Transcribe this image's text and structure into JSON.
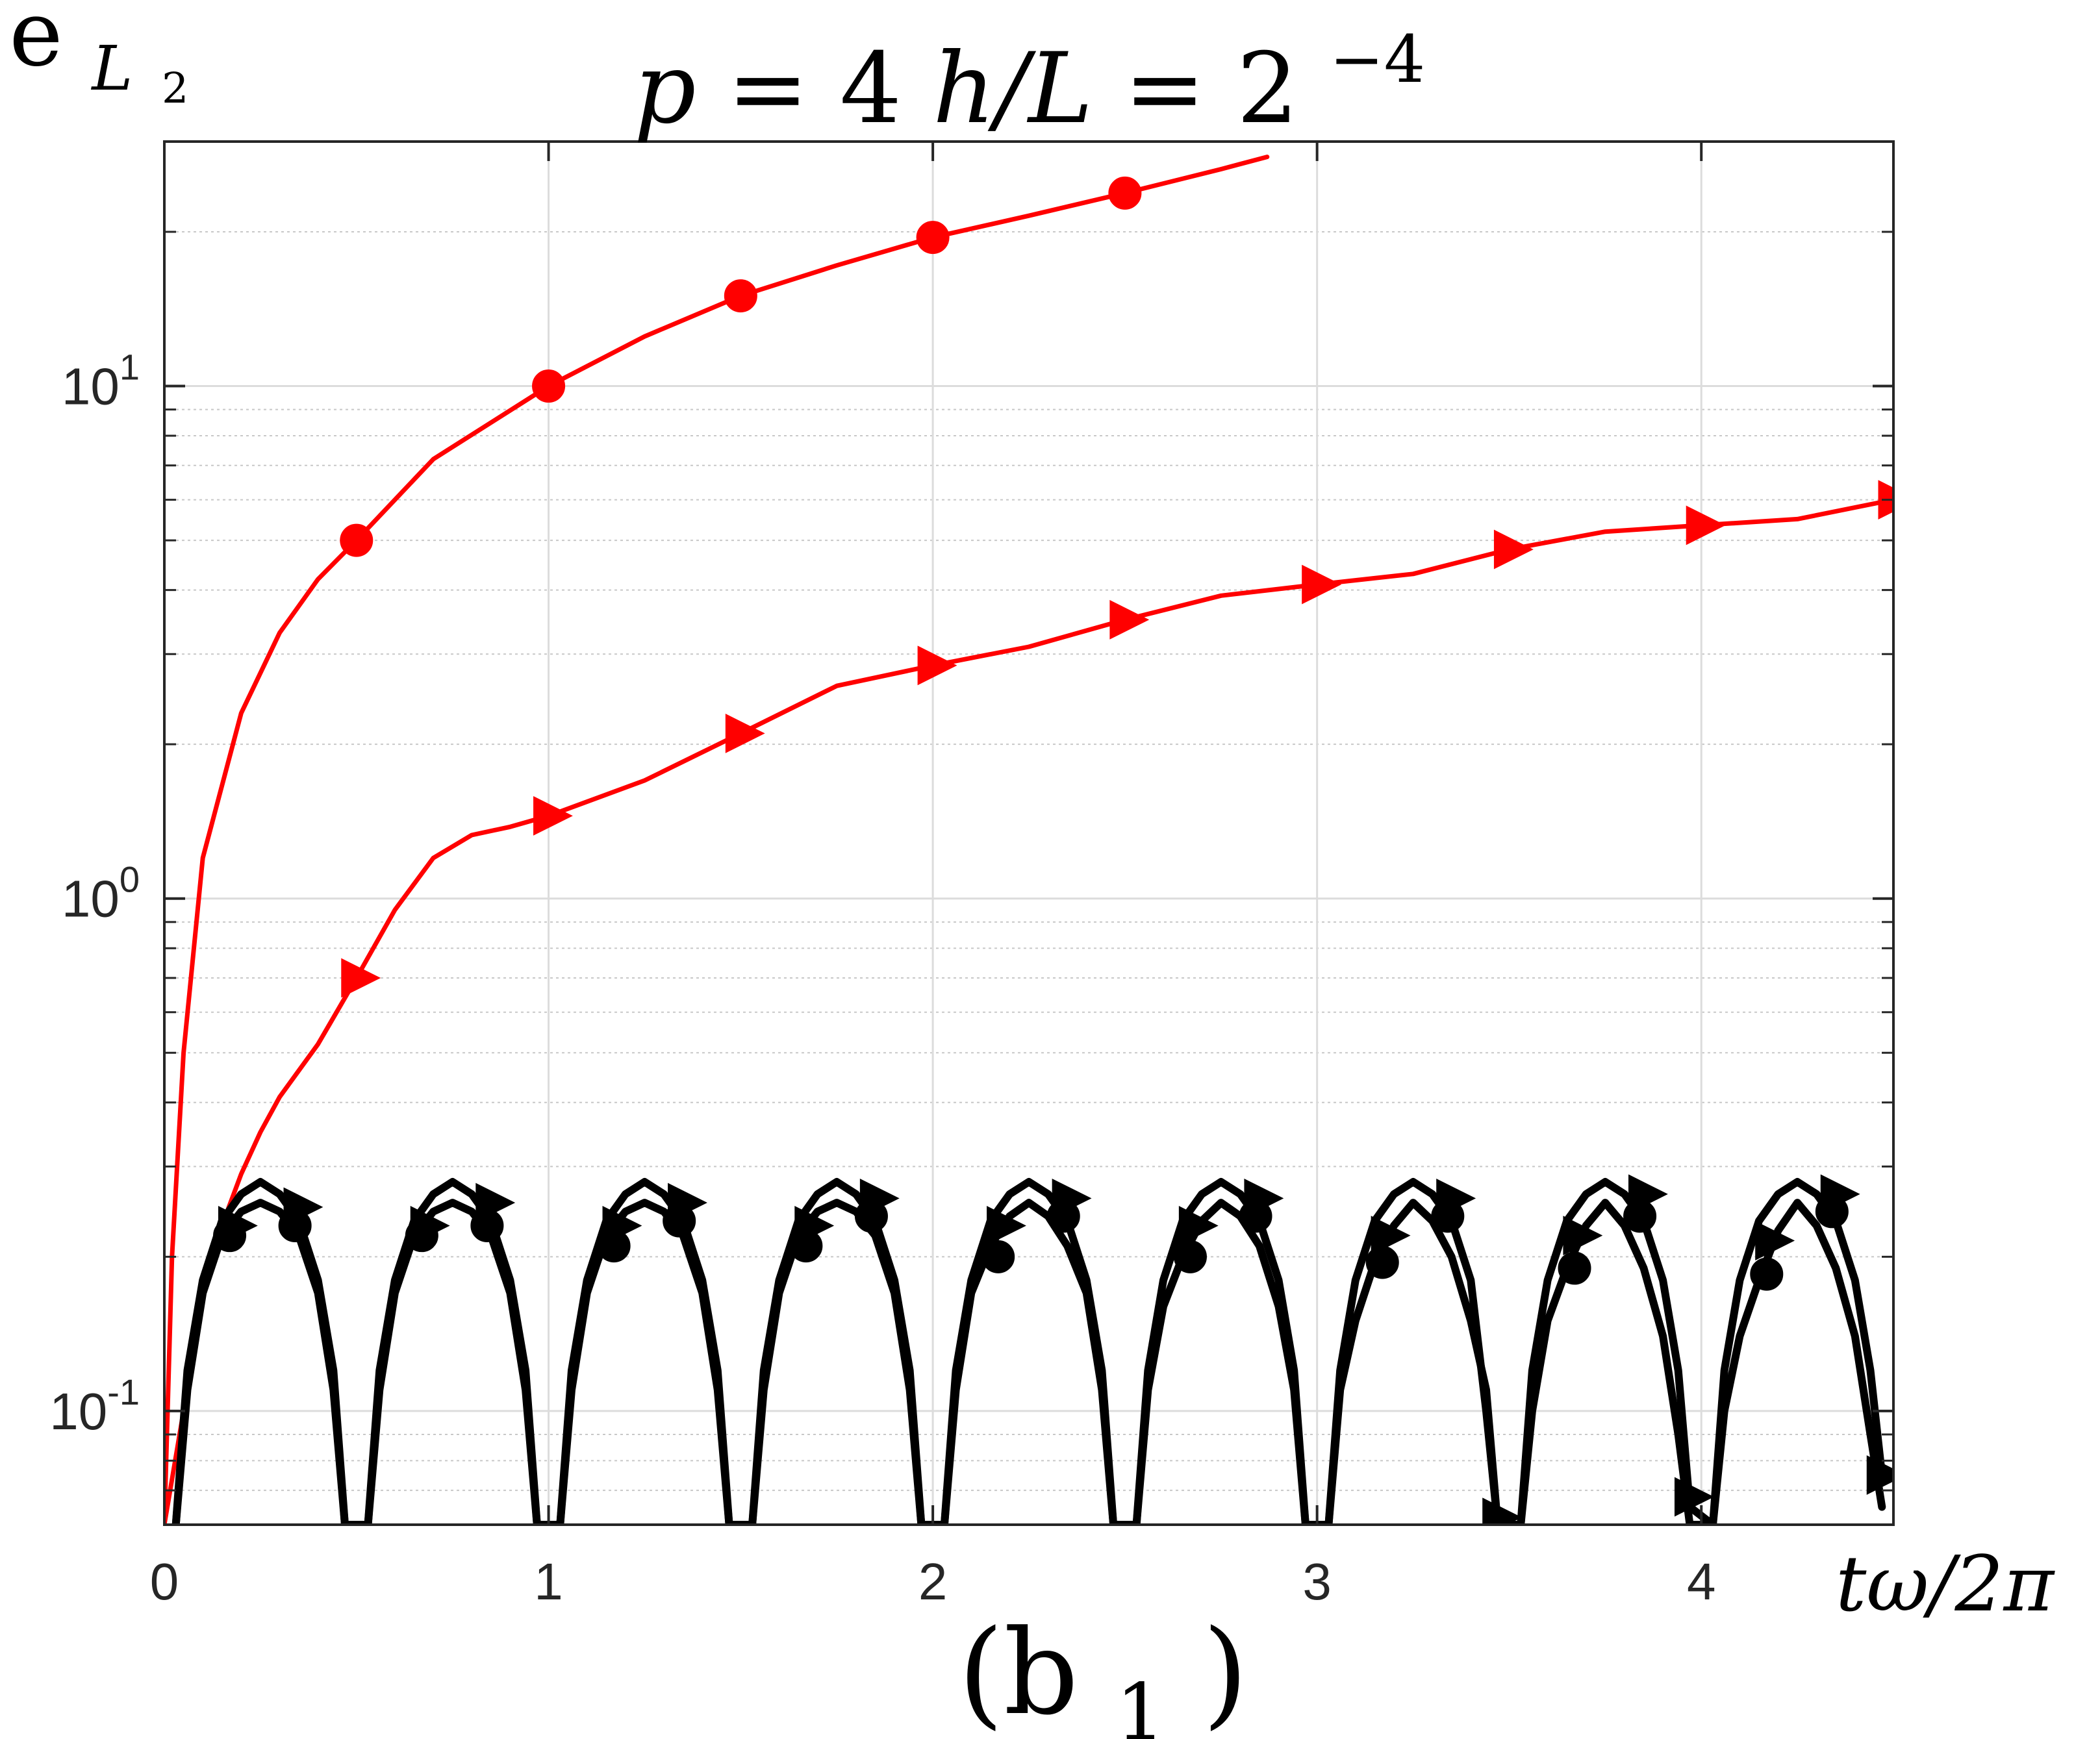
{
  "chart_data": {
    "type": "line",
    "title": {
      "p_label": "p",
      "p_value": "4",
      "h_label": "h/L",
      "base": "2",
      "exponent": "−4"
    },
    "ylabel": {
      "main": "e",
      "sub_main": "L",
      "sub_sub": "2"
    },
    "xlabel": "tω/2π",
    "panel_label": {
      "main": "(b",
      "sub": "1",
      "close": ")"
    },
    "x_scale": "linear",
    "y_scale": "log",
    "xlim": [
      0,
      4.5
    ],
    "ylim": [
      0.06,
      30
    ],
    "x_ticks": [
      0,
      1,
      2,
      3,
      4
    ],
    "x_tick_labels": [
      "0",
      "1",
      "2",
      "3",
      "4"
    ],
    "y_ticks": [
      {
        "base": "10",
        "exp": "-1",
        "value": 0.1
      },
      {
        "base": "10",
        "exp": "0",
        "value": 1
      },
      {
        "base": "10",
        "exp": "1",
        "value": 10
      }
    ],
    "grid": true,
    "legend": "none",
    "colors": {
      "red": "#ff0000",
      "black": "#000000",
      "grid": "#dcdcdc",
      "axis": "#262626"
    },
    "series": [
      {
        "color": "#ff0000",
        "marker": "circle",
        "x": [
          0.0,
          0.02,
          0.05,
          0.1,
          0.2,
          0.3,
          0.4,
          0.5,
          0.7,
          1.0,
          1.25,
          1.5,
          1.75,
          2.0,
          2.25,
          2.5,
          2.75,
          2.87
        ],
        "y": [
          0.06,
          0.2,
          0.5,
          1.2,
          2.3,
          3.3,
          4.2,
          5.0,
          7.2,
          10.0,
          12.5,
          15.0,
          17.2,
          19.5,
          21.5,
          23.8,
          26.5,
          28.0
        ],
        "marker_x": [
          0.5,
          1.0,
          1.5,
          2.0,
          2.5
        ],
        "marker_y": [
          5.0,
          10.0,
          15.0,
          19.5,
          23.8
        ]
      },
      {
        "color": "#ff0000",
        "marker": "triangle-right",
        "x": [
          0.0,
          0.05,
          0.1,
          0.15,
          0.2,
          0.25,
          0.3,
          0.4,
          0.5,
          0.6,
          0.7,
          0.8,
          0.9,
          1.0,
          1.25,
          1.5,
          1.75,
          2.0,
          2.25,
          2.5,
          2.75,
          3.0,
          3.25,
          3.5,
          3.75,
          4.0,
          4.25,
          4.5
        ],
        "y": [
          0.06,
          0.1,
          0.17,
          0.23,
          0.29,
          0.35,
          0.41,
          0.52,
          0.7,
          0.95,
          1.2,
          1.33,
          1.38,
          1.45,
          1.7,
          2.1,
          2.6,
          2.85,
          3.1,
          3.5,
          3.9,
          4.1,
          4.3,
          4.8,
          5.2,
          5.35,
          5.5,
          6.0
        ],
        "marker_x": [
          0.5,
          1.0,
          1.5,
          2.0,
          2.5,
          3.0,
          3.5,
          4.0,
          4.5
        ],
        "marker_y": [
          0.7,
          1.45,
          2.1,
          2.85,
          3.5,
          4.1,
          4.8,
          5.35,
          6.0
        ]
      },
      {
        "color": "#000000",
        "marker": "circle",
        "x": [
          0.03,
          0.06,
          0.1,
          0.15,
          0.2,
          0.25,
          0.3,
          0.35,
          0.4,
          0.44,
          0.47,
          0.53,
          0.56,
          0.6,
          0.65,
          0.7,
          0.75,
          0.8,
          0.85,
          0.9,
          0.94,
          0.97,
          1.03,
          1.06,
          1.1,
          1.15,
          1.2,
          1.25,
          1.3,
          1.35,
          1.4,
          1.44,
          1.47,
          1.53,
          1.56,
          1.6,
          1.65,
          1.7,
          1.75,
          1.8,
          1.85,
          1.9,
          1.94,
          1.97,
          2.03,
          2.06,
          2.1,
          2.15,
          2.2,
          2.25,
          2.3,
          2.35,
          2.4,
          2.44,
          2.47,
          2.53,
          2.56,
          2.6,
          2.65,
          2.7,
          2.75,
          2.8,
          2.85,
          2.9,
          2.94,
          2.97,
          3.03,
          3.06,
          3.1,
          3.15,
          3.2,
          3.25,
          3.3,
          3.35,
          3.4,
          3.44,
          3.47,
          3.53,
          3.56,
          3.6,
          3.65,
          3.7,
          3.75,
          3.8,
          3.85,
          3.9,
          3.94,
          3.97,
          4.03,
          4.06,
          4.1,
          4.15,
          4.2,
          4.25,
          4.3,
          4.35,
          4.4,
          4.44,
          4.47
        ],
        "y": [
          0.06,
          0.11,
          0.17,
          0.22,
          0.245,
          0.255,
          0.245,
          0.22,
          0.17,
          0.11,
          0.06,
          0.06,
          0.11,
          0.17,
          0.22,
          0.245,
          0.255,
          0.245,
          0.22,
          0.17,
          0.11,
          0.06,
          0.06,
          0.11,
          0.17,
          0.22,
          0.245,
          0.255,
          0.245,
          0.22,
          0.17,
          0.11,
          0.06,
          0.06,
          0.11,
          0.17,
          0.22,
          0.245,
          0.255,
          0.245,
          0.22,
          0.17,
          0.11,
          0.06,
          0.06,
          0.11,
          0.17,
          0.21,
          0.24,
          0.255,
          0.24,
          0.21,
          0.17,
          0.11,
          0.06,
          0.06,
          0.11,
          0.16,
          0.2,
          0.235,
          0.255,
          0.24,
          0.21,
          0.16,
          0.11,
          0.06,
          0.06,
          0.11,
          0.15,
          0.195,
          0.23,
          0.255,
          0.235,
          0.2,
          0.15,
          0.11,
          0.06,
          0.06,
          0.1,
          0.15,
          0.19,
          0.23,
          0.255,
          0.23,
          0.19,
          0.14,
          0.09,
          0.06,
          0.06,
          0.1,
          0.14,
          0.18,
          0.225,
          0.255,
          0.23,
          0.19,
          0.14,
          0.09,
          0.065
        ],
        "marker_x": [
          0.17,
          0.34,
          0.67,
          0.84,
          1.17,
          1.34,
          1.67,
          1.84,
          2.17,
          2.34,
          2.67,
          2.84,
          3.17,
          3.34,
          3.67,
          3.84,
          4.17,
          4.34
        ],
        "marker_y": [
          0.22,
          0.23,
          0.22,
          0.23,
          0.21,
          0.235,
          0.21,
          0.24,
          0.2,
          0.24,
          0.2,
          0.24,
          0.195,
          0.24,
          0.19,
          0.24,
          0.185,
          0.245
        ]
      },
      {
        "color": "#000000",
        "marker": "triangle-right",
        "x": [
          0.03,
          0.06,
          0.1,
          0.15,
          0.2,
          0.25,
          0.3,
          0.35,
          0.4,
          0.44,
          0.47,
          0.53,
          0.56,
          0.6,
          0.65,
          0.7,
          0.75,
          0.8,
          0.85,
          0.9,
          0.94,
          0.97,
          1.03,
          1.06,
          1.1,
          1.15,
          1.2,
          1.25,
          1.3,
          1.35,
          1.4,
          1.44,
          1.47,
          1.53,
          1.56,
          1.6,
          1.65,
          1.7,
          1.75,
          1.8,
          1.85,
          1.9,
          1.94,
          1.97,
          2.03,
          2.06,
          2.1,
          2.15,
          2.2,
          2.25,
          2.3,
          2.35,
          2.4,
          2.44,
          2.47,
          2.53,
          2.56,
          2.6,
          2.65,
          2.7,
          2.75,
          2.8,
          2.85,
          2.9,
          2.94,
          2.97,
          3.03,
          3.06,
          3.1,
          3.15,
          3.2,
          3.25,
          3.3,
          3.35,
          3.4,
          3.44,
          3.47,
          3.53,
          3.56,
          3.6,
          3.65,
          3.7,
          3.75,
          3.8,
          3.85,
          3.9,
          3.94,
          3.97,
          4.03,
          4.06,
          4.1,
          4.15,
          4.2,
          4.25,
          4.3,
          4.35,
          4.4,
          4.44,
          4.47
        ],
        "y": [
          0.06,
          0.12,
          0.18,
          0.235,
          0.265,
          0.28,
          0.265,
          0.235,
          0.18,
          0.12,
          0.06,
          0.06,
          0.12,
          0.18,
          0.235,
          0.265,
          0.28,
          0.265,
          0.235,
          0.18,
          0.12,
          0.06,
          0.06,
          0.12,
          0.18,
          0.235,
          0.265,
          0.28,
          0.265,
          0.235,
          0.18,
          0.12,
          0.06,
          0.06,
          0.12,
          0.18,
          0.235,
          0.265,
          0.28,
          0.265,
          0.235,
          0.18,
          0.12,
          0.06,
          0.06,
          0.12,
          0.18,
          0.235,
          0.265,
          0.28,
          0.265,
          0.235,
          0.18,
          0.12,
          0.06,
          0.06,
          0.12,
          0.18,
          0.235,
          0.265,
          0.28,
          0.265,
          0.235,
          0.18,
          0.12,
          0.06,
          0.06,
          0.12,
          0.18,
          0.235,
          0.265,
          0.28,
          0.265,
          0.235,
          0.18,
          0.1,
          0.06,
          0.06,
          0.12,
          0.18,
          0.235,
          0.265,
          0.28,
          0.265,
          0.235,
          0.18,
          0.12,
          0.065,
          0.06,
          0.12,
          0.18,
          0.235,
          0.265,
          0.28,
          0.265,
          0.235,
          0.18,
          0.12,
          0.075
        ],
        "marker_x": [
          0.18,
          0.35,
          0.68,
          0.85,
          1.18,
          1.35,
          1.68,
          1.85,
          2.18,
          2.35,
          2.68,
          2.85,
          3.18,
          3.35,
          3.47,
          3.68,
          3.85,
          3.97,
          4.18,
          4.35,
          4.47
        ],
        "marker_y": [
          0.23,
          0.25,
          0.23,
          0.255,
          0.23,
          0.255,
          0.23,
          0.26,
          0.23,
          0.26,
          0.23,
          0.26,
          0.22,
          0.26,
          0.062,
          0.22,
          0.265,
          0.068,
          0.215,
          0.265,
          0.075
        ]
      }
    ]
  }
}
